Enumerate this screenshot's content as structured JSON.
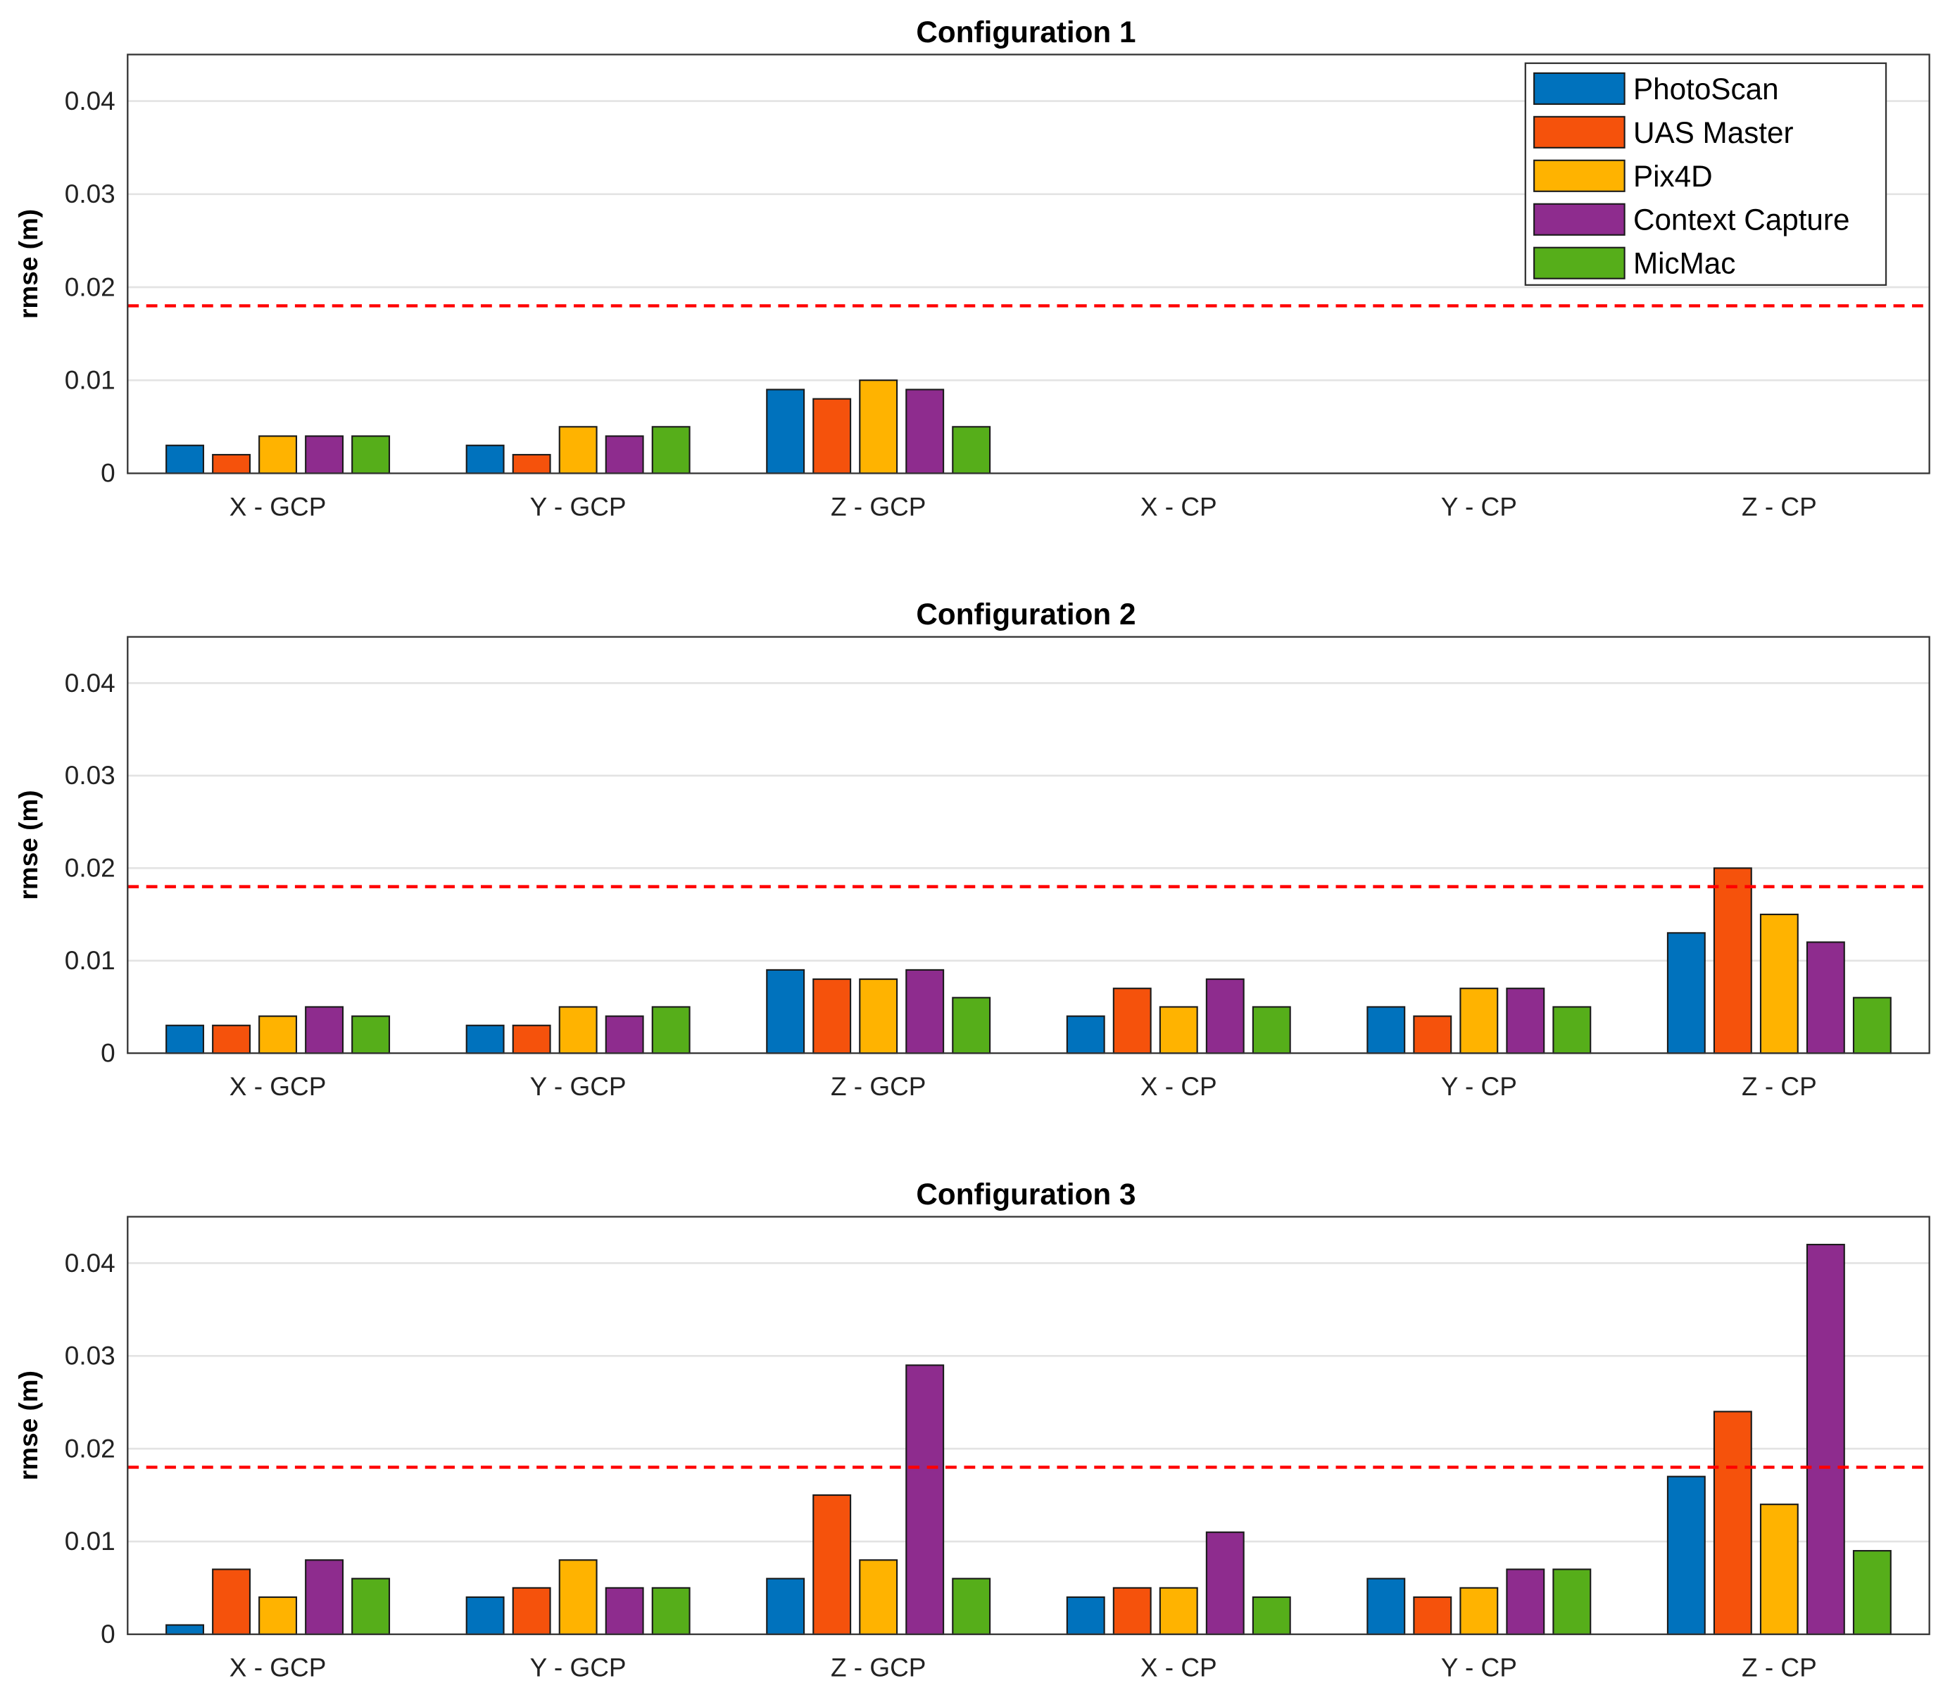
{
  "chart_data": {
    "type": "bar",
    "categories": [
      "X - GCP",
      "Y - GCP",
      "Z - GCP",
      "X - CP",
      "Y - CP",
      "Z - CP"
    ],
    "ylabel": "rmse (m)",
    "ylim": [
      0,
      0.045
    ],
    "yticks": [
      0,
      0.01,
      0.02,
      0.03,
      0.04
    ],
    "ytick_labels": [
      "0",
      "0.01",
      "0.02",
      "0.03",
      "0.04"
    ],
    "grid": "horizontal",
    "legend_position": "top-right",
    "threshold": {
      "value": 0.018,
      "color": "#ff0000",
      "style": "dashed"
    },
    "series_names": [
      "PhotoScan",
      "UAS Master",
      "Pix4D",
      "Context Capture",
      "MicMac"
    ],
    "series_colors": [
      "#0072bd",
      "#f5520c",
      "#ffb300",
      "#8e2c8e",
      "#56ae1a"
    ],
    "panels": [
      {
        "title": "Configuration 1",
        "series": [
          {
            "name": "PhotoScan",
            "values": [
              0.003,
              0.003,
              0.009,
              null,
              null,
              null
            ]
          },
          {
            "name": "UAS Master",
            "values": [
              0.002,
              0.002,
              0.008,
              null,
              null,
              null
            ]
          },
          {
            "name": "Pix4D",
            "values": [
              0.004,
              0.005,
              0.01,
              null,
              null,
              null
            ]
          },
          {
            "name": "Context Capture",
            "values": [
              0.004,
              0.004,
              0.009,
              null,
              null,
              null
            ]
          },
          {
            "name": "MicMac",
            "values": [
              0.004,
              0.005,
              0.005,
              null,
              null,
              null
            ]
          }
        ]
      },
      {
        "title": "Configuration 2",
        "series": [
          {
            "name": "PhotoScan",
            "values": [
              0.003,
              0.003,
              0.009,
              0.004,
              0.005,
              0.013
            ]
          },
          {
            "name": "UAS Master",
            "values": [
              0.003,
              0.003,
              0.008,
              0.007,
              0.004,
              0.02
            ]
          },
          {
            "name": "Pix4D",
            "values": [
              0.004,
              0.005,
              0.008,
              0.005,
              0.007,
              0.015
            ]
          },
          {
            "name": "Context Capture",
            "values": [
              0.005,
              0.004,
              0.009,
              0.008,
              0.007,
              0.012
            ]
          },
          {
            "name": "MicMac",
            "values": [
              0.004,
              0.005,
              0.006,
              0.005,
              0.005,
              0.006
            ]
          }
        ]
      },
      {
        "title": "Configuration 3",
        "series": [
          {
            "name": "PhotoScan",
            "values": [
              0.001,
              0.004,
              0.006,
              0.004,
              0.006,
              0.017
            ]
          },
          {
            "name": "UAS Master",
            "values": [
              0.007,
              0.005,
              0.015,
              0.005,
              0.004,
              0.024
            ]
          },
          {
            "name": "Pix4D",
            "values": [
              0.004,
              0.008,
              0.008,
              0.005,
              0.005,
              0.014
            ]
          },
          {
            "name": "Context Capture",
            "values": [
              0.008,
              0.005,
              0.029,
              0.011,
              0.007,
              0.042
            ]
          },
          {
            "name": "MicMac",
            "values": [
              0.006,
              0.005,
              0.006,
              0.004,
              0.007,
              0.009
            ]
          }
        ]
      }
    ]
  }
}
